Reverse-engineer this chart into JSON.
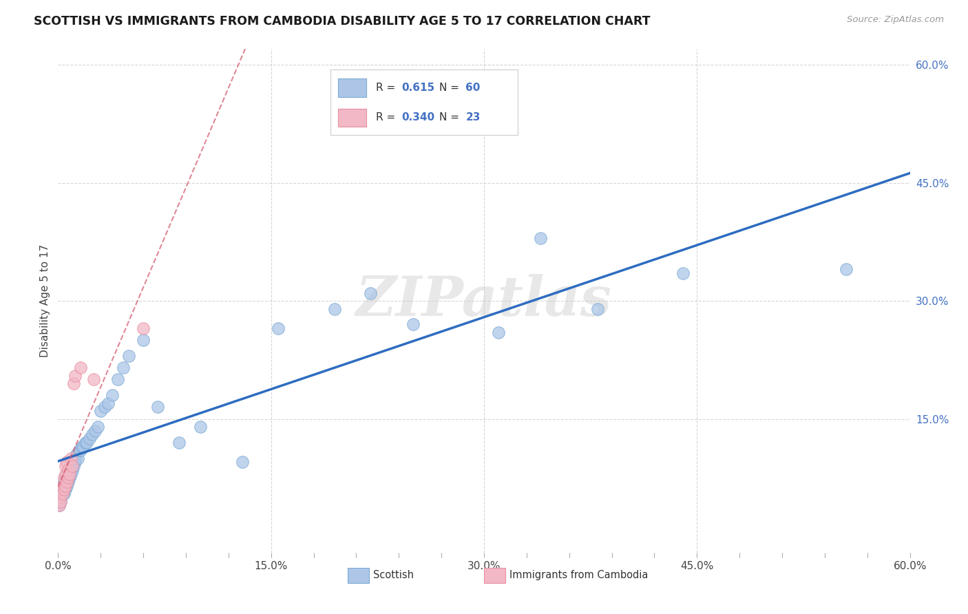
{
  "title": "SCOTTISH VS IMMIGRANTS FROM CAMBODIA DISABILITY AGE 5 TO 17 CORRELATION CHART",
  "source": "Source: ZipAtlas.com",
  "ylabel": "Disability Age 5 to 17",
  "xlim": [
    0.0,
    0.6
  ],
  "ylim": [
    -0.02,
    0.62
  ],
  "xtick_labels": [
    "0.0%",
    "",
    "",
    "",
    "",
    "15.0%",
    "",
    "",
    "",
    "",
    "30.0%",
    "",
    "",
    "",
    "",
    "45.0%",
    "",
    "",
    "",
    "",
    "60.0%"
  ],
  "xtick_vals": [
    0.0,
    0.03,
    0.06,
    0.09,
    0.12,
    0.15,
    0.18,
    0.21,
    0.24,
    0.27,
    0.3,
    0.33,
    0.36,
    0.39,
    0.42,
    0.45,
    0.48,
    0.51,
    0.54,
    0.57,
    0.6
  ],
  "ytick_labels": [
    "15.0%",
    "30.0%",
    "45.0%",
    "60.0%"
  ],
  "ytick_vals": [
    0.15,
    0.3,
    0.45,
    0.6
  ],
  "grid_ytick_vals": [
    0.15,
    0.3,
    0.45,
    0.6
  ],
  "scottish_color": "#adc6e8",
  "scottish_edge_color": "#7baad4",
  "cambodia_color": "#f2b8c6",
  "cambodia_edge_color": "#e8909f",
  "scottish_line_color": "#2d6cc0",
  "cambodia_line_color": "#d4556a",
  "watermark": "ZIPatlas",
  "R_scottish": "0.615",
  "N_scottish": "60",
  "R_cambodia": "0.340",
  "N_cambodia": "23",
  "scottish_x": [
    0.001,
    0.002,
    0.002,
    0.003,
    0.003,
    0.003,
    0.004,
    0.004,
    0.004,
    0.005,
    0.005,
    0.005,
    0.006,
    0.006,
    0.006,
    0.007,
    0.007,
    0.007,
    0.008,
    0.008,
    0.009,
    0.009,
    0.01,
    0.01,
    0.011,
    0.012,
    0.012,
    0.013,
    0.014,
    0.015,
    0.016,
    0.017,
    0.018,
    0.019,
    0.02,
    0.022,
    0.024,
    0.026,
    0.028,
    0.03,
    0.033,
    0.035,
    0.038,
    0.042,
    0.046,
    0.05,
    0.06,
    0.07,
    0.085,
    0.1,
    0.13,
    0.155,
    0.195,
    0.22,
    0.25,
    0.31,
    0.34,
    0.38,
    0.44,
    0.555
  ],
  "scottish_y": [
    0.04,
    0.045,
    0.05,
    0.055,
    0.06,
    0.065,
    0.055,
    0.06,
    0.07,
    0.06,
    0.065,
    0.075,
    0.065,
    0.07,
    0.08,
    0.07,
    0.075,
    0.085,
    0.075,
    0.08,
    0.08,
    0.09,
    0.085,
    0.095,
    0.09,
    0.095,
    0.1,
    0.105,
    0.1,
    0.11,
    0.11,
    0.115,
    0.115,
    0.12,
    0.12,
    0.125,
    0.13,
    0.135,
    0.14,
    0.16,
    0.165,
    0.17,
    0.18,
    0.2,
    0.215,
    0.23,
    0.25,
    0.165,
    0.12,
    0.14,
    0.095,
    0.265,
    0.29,
    0.31,
    0.27,
    0.26,
    0.38,
    0.29,
    0.335,
    0.34
  ],
  "cambodia_x": [
    0.001,
    0.001,
    0.002,
    0.002,
    0.003,
    0.003,
    0.004,
    0.004,
    0.005,
    0.005,
    0.005,
    0.006,
    0.006,
    0.007,
    0.007,
    0.008,
    0.009,
    0.01,
    0.011,
    0.012,
    0.016,
    0.025,
    0.06
  ],
  "cambodia_y": [
    0.04,
    0.05,
    0.045,
    0.06,
    0.055,
    0.065,
    0.06,
    0.075,
    0.065,
    0.08,
    0.09,
    0.07,
    0.095,
    0.075,
    0.085,
    0.08,
    0.1,
    0.09,
    0.195,
    0.205,
    0.215,
    0.2,
    0.265
  ]
}
